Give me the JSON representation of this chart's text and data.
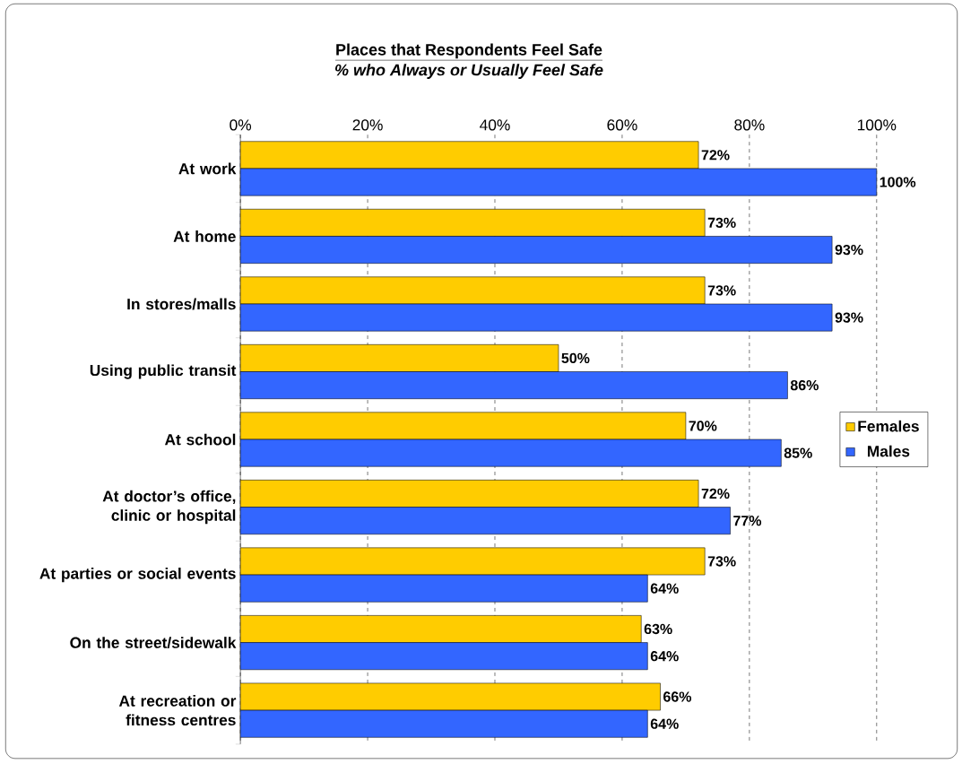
{
  "chart_data": {
    "type": "bar",
    "orientation": "horizontal",
    "title": "Places that Respondents Feel Safe",
    "subtitle": "% who Always or Usually Feel Safe",
    "categories": [
      "At work",
      "At home",
      "In stores/malls",
      "Using public transit",
      "At school",
      "At doctor’s office, clinic or hospital",
      "At parties or social events",
      "On the street/sidewalk",
      "At recreation or fitness centres"
    ],
    "series": [
      {
        "name": "Females",
        "color": "#ffcc00",
        "values": [
          72,
          73,
          73,
          50,
          70,
          72,
          73,
          63,
          66
        ],
        "value_labels": [
          "72%",
          "73%",
          "73%",
          "50%",
          "70%",
          "72%",
          "73%",
          "63%",
          "66%"
        ]
      },
      {
        "name": "Males",
        "color": "#3366ff",
        "values": [
          100,
          93,
          93,
          86,
          85,
          77,
          64,
          64,
          64
        ],
        "value_labels": [
          "100%",
          "93%",
          "93%",
          "86%",
          "85%",
          "77%",
          "64%",
          "64%",
          "64%"
        ]
      }
    ],
    "xlim": [
      0,
      100
    ],
    "xticks": [
      {
        "value": 0,
        "label": "0%"
      },
      {
        "value": 20,
        "label": "20%"
      },
      {
        "value": 40,
        "label": "40%"
      },
      {
        "value": 60,
        "label": "60%"
      },
      {
        "value": 80,
        "label": "80%"
      },
      {
        "value": 100,
        "label": "100%"
      }
    ],
    "grid": "x",
    "legend": "right"
  }
}
